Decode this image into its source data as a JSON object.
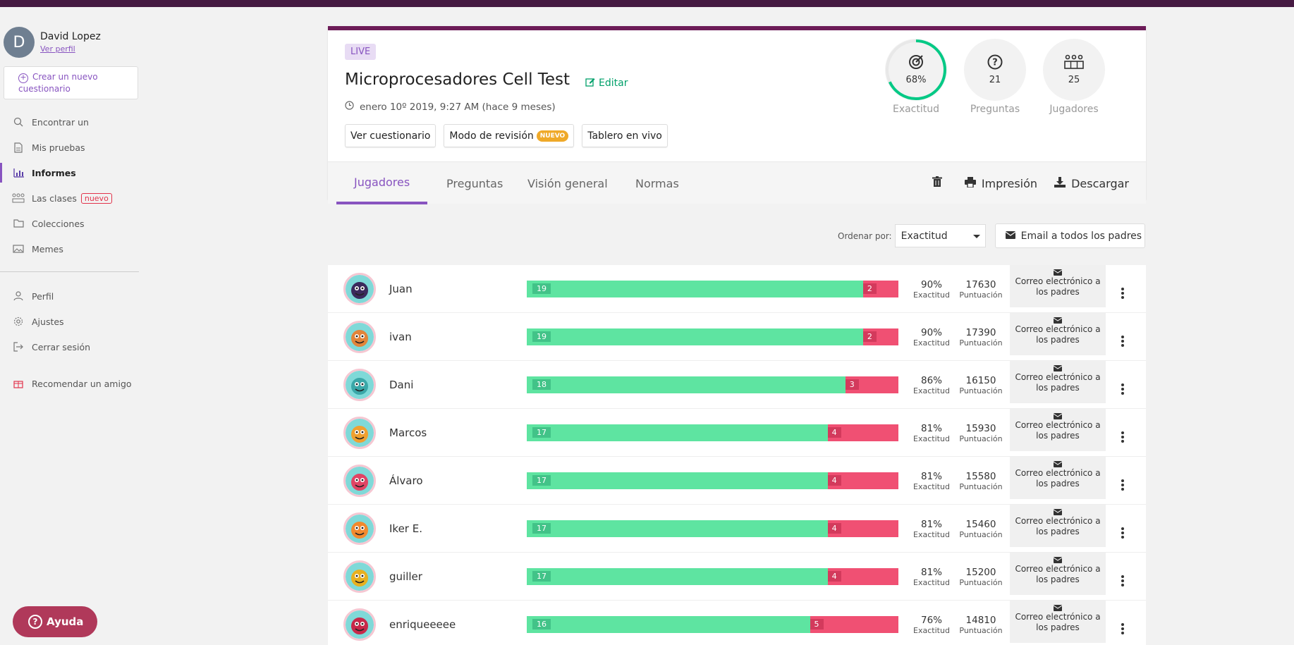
{
  "user": {
    "initial": "D",
    "name": "David Lopez",
    "profile_link": "Ver perfil"
  },
  "sidebar": {
    "create_label": "Crear un nuevo cuestionario",
    "items": [
      {
        "label": "Encontrar un",
        "icon": "search-icon"
      },
      {
        "label": "Mis pruebas",
        "icon": "document-icon"
      },
      {
        "label": "Informes",
        "icon": "bar-chart-icon",
        "active": true
      },
      {
        "label": "Las clases",
        "icon": "class-icon",
        "badge": "nuevo"
      },
      {
        "label": "Colecciones",
        "icon": "folder-icon"
      },
      {
        "label": "Memes",
        "icon": "image-icon"
      }
    ],
    "items2": [
      {
        "label": "Perfil",
        "icon": "user-icon"
      },
      {
        "label": "Ajustes",
        "icon": "gear-icon"
      },
      {
        "label": "Cerrar sesión",
        "icon": "logout-icon"
      }
    ],
    "recommend": "Recomendar un amigo",
    "help": "Ayuda"
  },
  "quiz": {
    "live_badge": "LIVE",
    "title": "Microprocesadores Cell Test",
    "edit_label": "Editar",
    "date": "enero 10º 2019, 9:27 AM (hace 9 meses)",
    "buttons": {
      "view": "Ver cuestionario",
      "review": "Modo de revisión",
      "review_badge": "NUEVO",
      "live_board": "Tablero en vivo"
    }
  },
  "stats": {
    "accuracy": {
      "value": "68%",
      "fraction": 0.68,
      "label": "Exactitud"
    },
    "questions": {
      "value": "21",
      "label": "Preguntas"
    },
    "players": {
      "value": "25",
      "label": "Jugadores"
    }
  },
  "tabs": [
    "Jugadores",
    "Preguntas",
    "Visión general",
    "Normas"
  ],
  "actions": {
    "print": "Impresión",
    "download": "Descargar"
  },
  "sort": {
    "label": "Ordenar por:",
    "value": "Exactitud"
  },
  "email_all": "Email a todos los padres",
  "row_labels": {
    "accuracy": "Exactitud",
    "points": "Puntuación",
    "email": "Correo electrónico a los padres"
  },
  "players": [
    {
      "name": "Juan",
      "correct": 19,
      "incorrect": 2,
      "accuracy": "90%",
      "points": "17630"
    },
    {
      "name": "ivan",
      "correct": 19,
      "incorrect": 2,
      "accuracy": "90%",
      "points": "17390"
    },
    {
      "name": "Dani",
      "correct": 18,
      "incorrect": 3,
      "accuracy": "86%",
      "points": "16150"
    },
    {
      "name": "Marcos",
      "correct": 17,
      "incorrect": 4,
      "accuracy": "81%",
      "points": "15930"
    },
    {
      "name": "Álvaro",
      "correct": 17,
      "incorrect": 4,
      "accuracy": "81%",
      "points": "15580"
    },
    {
      "name": "Iker E.",
      "correct": 17,
      "incorrect": 4,
      "accuracy": "81%",
      "points": "15460"
    },
    {
      "name": "guiller",
      "correct": 17,
      "incorrect": 4,
      "accuracy": "81%",
      "points": "15200"
    },
    {
      "name": "enriqueeeee",
      "correct": 16,
      "incorrect": 5,
      "accuracy": "76%",
      "points": "14810"
    }
  ]
}
